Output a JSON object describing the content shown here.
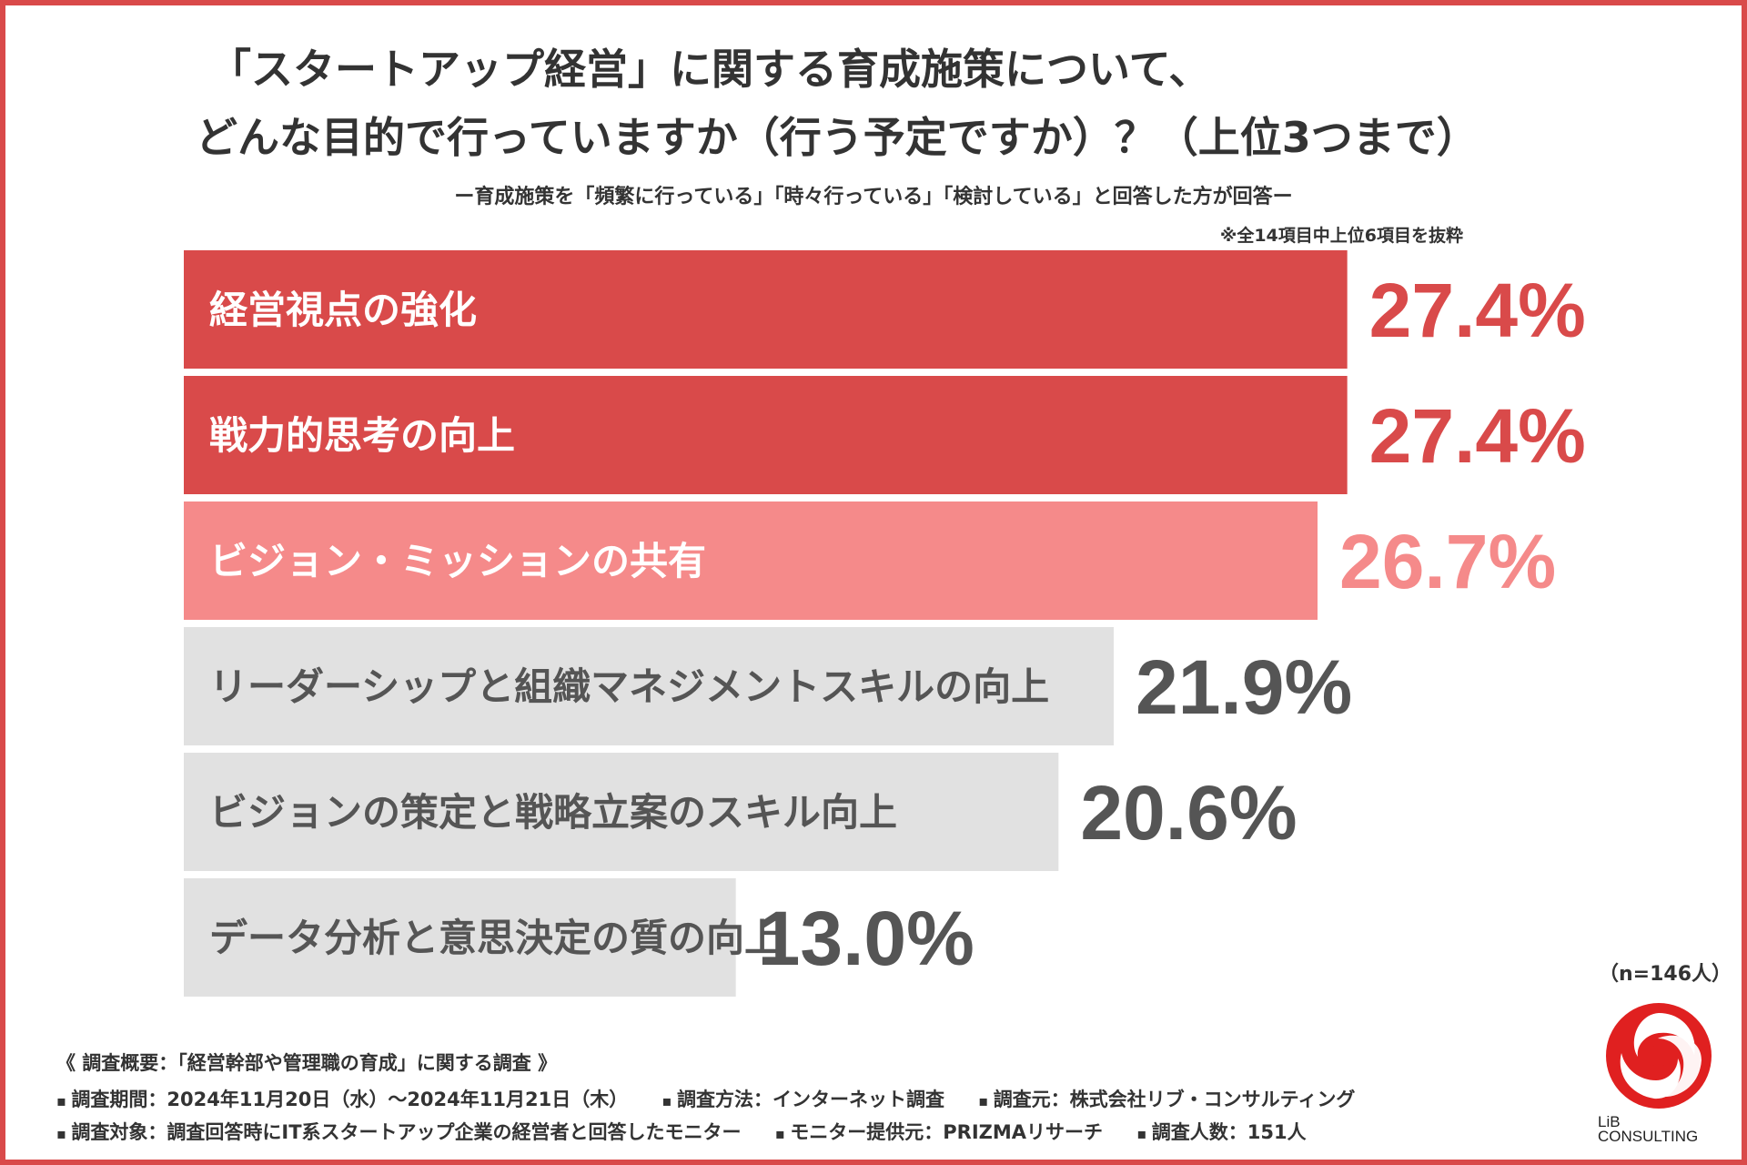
{
  "title": {
    "line1": "「スタートアップ経営」に関する育成施策について、",
    "line2": "どんな目的で行っていますか（行う予定ですか）？（上位3つまで）"
  },
  "subtitle": "ー育成施策を「頻繁に行っている」「時々行っている」「検討している」と回答した方が回答ー",
  "note": "※全14項目中上位6項目を抜粋",
  "colors": {
    "top": "#d94a4a",
    "second": "#f58a8a",
    "other": "#e1e1e1",
    "other_text": "#555555",
    "border": "#d94a4a"
  },
  "chart_data": {
    "type": "bar",
    "orientation": "horizontal",
    "categories": [
      "経営視点の強化",
      "戦力的思考の向上",
      "ビジョン・ミッションの共有",
      "リーダーシップと組織マネジメントスキルの向上",
      "ビジョンの策定と戦略立案のスキル向上",
      "データ分析と意思決定の質の向上"
    ],
    "values": [
      27.4,
      27.4,
      26.7,
      21.9,
      20.6,
      13.0
    ],
    "value_labels": [
      "27.4%",
      "27.4%",
      "26.7%",
      "21.9%",
      "20.6%",
      "13.0%"
    ],
    "highlight": [
      "top",
      "top",
      "second",
      "other",
      "other",
      "other"
    ],
    "unit": "%",
    "xlim": [
      0,
      30
    ]
  },
  "sample": "（n=146人）",
  "footer": {
    "heading": "《 調査概要：「経営幹部や管理職の育成」に関する調査 》",
    "line1": [
      "調査期間：2024年11月20日（水）〜2024年11月21日（木）",
      "調査方法：インターネット調査",
      "調査元：株式会社リブ・コンサルティング"
    ],
    "line2": [
      "調査対象：調査回答時にIT系スタートアップ企業の経営者と回答したモニター",
      "モニター提供元：PRIZMAリサーチ",
      "調査人数：151人"
    ]
  },
  "logo": {
    "icon": "swirl-logo-icon",
    "text_line1": "LiB",
    "text_line2": "CONSULTING"
  }
}
